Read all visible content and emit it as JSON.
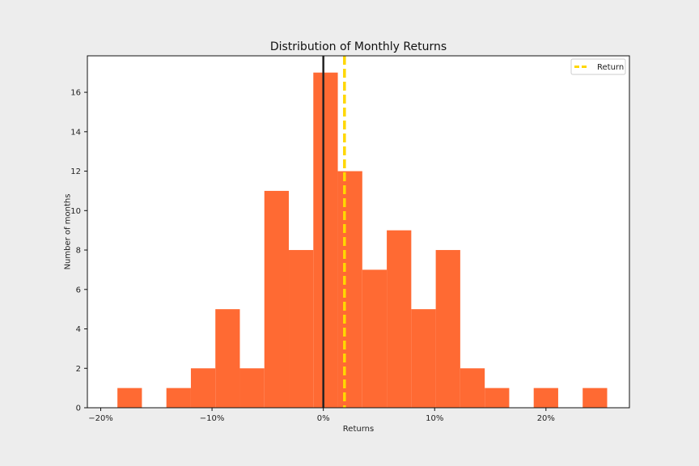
{
  "chart_data": {
    "type": "bar",
    "title": "Distribution of Monthly Returns",
    "xlabel": "Returns",
    "ylabel": "Number of months",
    "x_tick_labels": [
      "−20%",
      "−10%",
      "0%",
      "10%",
      "20%"
    ],
    "x_ticks": [
      -0.2,
      -0.1,
      0.0,
      0.1,
      0.2
    ],
    "y_ticks": [
      0,
      2,
      4,
      6,
      8,
      10,
      12,
      14,
      16
    ],
    "xlim": [
      -0.212,
      0.275
    ],
    "ylim": [
      0,
      17.85
    ],
    "bin_edges": [
      -0.185,
      -0.163,
      -0.141,
      -0.119,
      -0.097,
      -0.075,
      -0.053,
      -0.031,
      -0.009,
      0.013,
      0.035,
      0.057,
      0.079,
      0.101,
      0.123,
      0.145,
      0.167,
      0.189,
      0.211,
      0.233,
      0.255
    ],
    "values": [
      1,
      0,
      1,
      2,
      5,
      2,
      11,
      8,
      17,
      12,
      7,
      9,
      5,
      8,
      2,
      1,
      0,
      1,
      0,
      1
    ],
    "zero_line": 0.0,
    "mean_line": 0.019,
    "legend": {
      "entries": [
        "Return"
      ],
      "placement": "top-right"
    },
    "grid": false,
    "colors": {
      "bars": "#ff6a33",
      "zero_line": "#222222",
      "mean_line": "#ffd700",
      "background": "#ededed",
      "plot_bg": "#ffffff"
    }
  }
}
